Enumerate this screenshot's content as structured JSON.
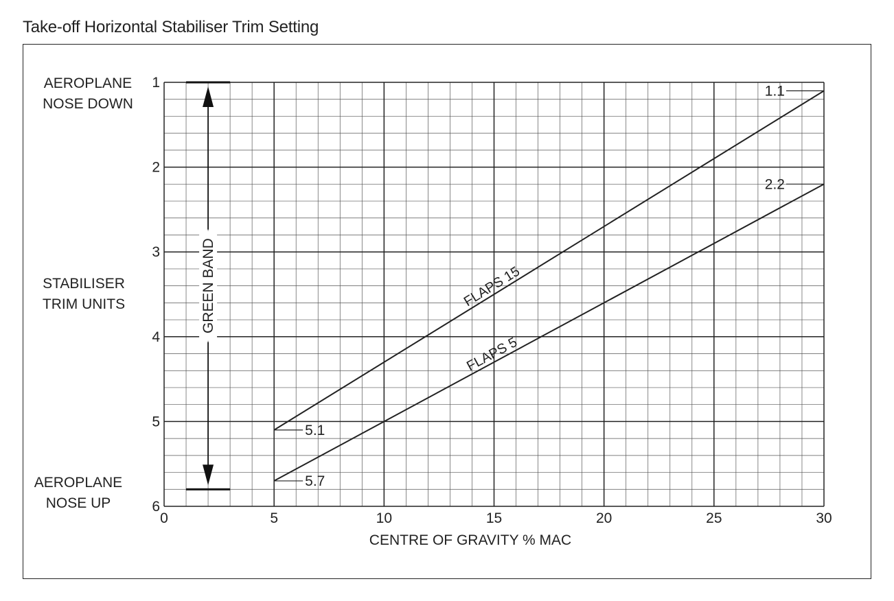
{
  "title": "Take-off Horizontal Stabiliser Trim Setting",
  "side_labels": {
    "top": [
      "AEROPLANE",
      "NOSE DOWN"
    ],
    "middle": [
      "STABILISER",
      "TRIM UNITS"
    ],
    "bottom": [
      "AEROPLANE",
      "NOSE UP"
    ]
  },
  "chart_data": {
    "type": "line",
    "title": "Take-off Horizontal Stabiliser Trim Setting",
    "xlabel": "CENTRE OF GRAVITY  % MAC",
    "ylabel": "STABILISER TRIM UNITS",
    "xlim": [
      0,
      30
    ],
    "ylim": [
      1,
      6
    ],
    "y_inverted": true,
    "x_ticks": [
      "0",
      "5",
      "10",
      "15",
      "20",
      "25",
      "30"
    ],
    "y_ticks": [
      "1",
      "2",
      "3",
      "4",
      "5",
      "6"
    ],
    "grid": true,
    "series": [
      {
        "name": "FLAPS 15",
        "x": [
          5,
          30
        ],
        "y": [
          5.1,
          1.1
        ]
      },
      {
        "name": "FLAPS 5",
        "x": [
          5,
          30
        ],
        "y": [
          5.7,
          2.2
        ]
      }
    ],
    "annotations": [
      {
        "text": "1.1",
        "x": 30,
        "y": 1.1,
        "side": "left"
      },
      {
        "text": "2.2",
        "x": 30,
        "y": 2.2,
        "side": "left"
      },
      {
        "text": "5.1",
        "x": 5,
        "y": 5.1,
        "side": "right"
      },
      {
        "text": "5.7",
        "x": 5,
        "y": 5.7,
        "side": "right"
      }
    ],
    "band": {
      "label": "GREEN BAND",
      "x": 2,
      "y_from": 1,
      "y_to": 5.8,
      "cap_x_from": 1,
      "cap_x_to": 3
    }
  }
}
